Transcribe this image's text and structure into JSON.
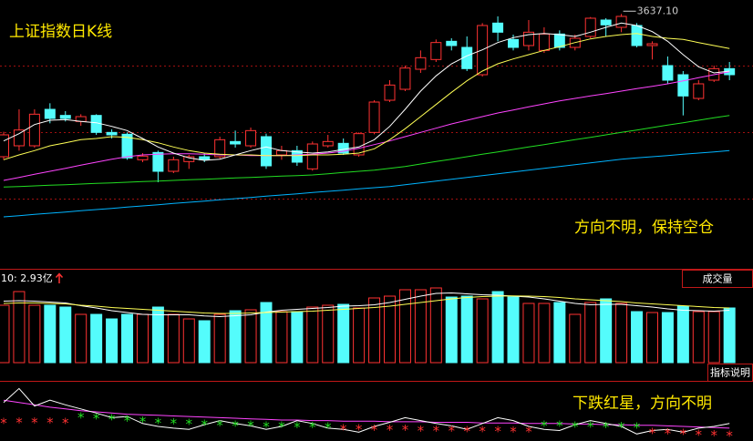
{
  "chart_data": [
    {
      "type": "candlestick",
      "title": "上证指数日K线",
      "annotation": "方向不明，保持空仓",
      "high_label": {
        "value": 3637.1,
        "label": "3637.10"
      },
      "ylim": [
        3217.5,
        3660
      ],
      "up_color": "#ff3232",
      "down_color": "#54fcfc",
      "open": [
        3402,
        3420,
        3420,
        3480,
        3470,
        3460,
        3470,
        3442,
        3439,
        3397,
        3409,
        3378,
        3394,
        3402,
        3402,
        3427,
        3420,
        3435,
        3405,
        3412,
        3382,
        3420,
        3424,
        3405,
        3442,
        3495,
        3513,
        3546,
        3562,
        3592,
        3582,
        3537,
        3622,
        3595,
        3585,
        3577,
        3604,
        3582,
        3600,
        3627,
        3615,
        3618,
        3585,
        3552,
        3537,
        3498,
        3528,
        3547
      ],
      "high": [
        3443,
        3480,
        3480,
        3490,
        3477,
        3472,
        3472,
        3447,
        3442,
        3408,
        3412,
        3402,
        3405,
        3408,
        3435,
        3445,
        3450,
        3440,
        3420,
        3420,
        3427,
        3438,
        3432,
        3442,
        3495,
        3528,
        3552,
        3577,
        3595,
        3597,
        3600,
        3622,
        3633,
        3603,
        3627,
        3615,
        3610,
        3603,
        3632,
        3630,
        3637.1,
        3622,
        3592,
        3567,
        3543,
        3528,
        3552,
        3558
      ],
      "low": [
        3397,
        3412,
        3417,
        3457,
        3460,
        3453,
        3438,
        3432,
        3397,
        3393,
        3360,
        3375,
        3382,
        3393,
        3399,
        3417,
        3417,
        3382,
        3397,
        3387,
        3379,
        3417,
        3405,
        3402,
        3439,
        3492,
        3510,
        3540,
        3558,
        3577,
        3543,
        3534,
        3592,
        3577,
        3577,
        3573,
        3577,
        3577,
        3597,
        3600,
        3607,
        3582,
        3562,
        3522,
        3470,
        3495,
        3525,
        3528
      ],
      "close": [
        3438,
        3446,
        3472,
        3465,
        3465,
        3468,
        3442,
        3438,
        3400,
        3403,
        3378,
        3397,
        3402,
        3397,
        3430,
        3423,
        3445,
        3387,
        3412,
        3393,
        3423,
        3427,
        3408,
        3440,
        3492,
        3520,
        3548,
        3565,
        3590,
        3585,
        3547,
        3618,
        3607,
        3582,
        3607,
        3604,
        3582,
        3597,
        3630,
        3619,
        3633,
        3585,
        3588,
        3528,
        3502,
        3522,
        3547,
        3537
      ],
      "ma_series": [
        {
          "color": "#00b4ff",
          "values": [
            3303,
            3305,
            3307,
            3309,
            3311,
            3313,
            3315,
            3317,
            3319,
            3321,
            3323,
            3325,
            3327,
            3329,
            3331,
            3333,
            3335,
            3337,
            3339,
            3341,
            3343,
            3345,
            3347,
            3349,
            3351,
            3353,
            3356,
            3359,
            3362,
            3365,
            3368,
            3371,
            3374,
            3377,
            3380,
            3383,
            3386,
            3389,
            3392,
            3395,
            3398,
            3400,
            3402,
            3404,
            3406,
            3408,
            3410,
            3412
          ]
        },
        {
          "color": "#22dd22",
          "values": [
            3352,
            3353,
            3354,
            3355,
            3356,
            3357,
            3358,
            3359,
            3360,
            3361,
            3362,
            3363,
            3364,
            3365,
            3366,
            3367,
            3368,
            3369,
            3370,
            3371,
            3372,
            3374,
            3376,
            3378,
            3380,
            3383,
            3386,
            3390,
            3394,
            3398,
            3402,
            3406,
            3410,
            3414,
            3418,
            3422,
            3426,
            3430,
            3434,
            3438,
            3442,
            3446,
            3450,
            3454,
            3458,
            3462,
            3466,
            3470
          ]
        },
        {
          "color": "#ff44ff",
          "values": [
            3363,
            3368,
            3373,
            3378,
            3383,
            3388,
            3393,
            3398,
            3402,
            3405,
            3406,
            3407,
            3407,
            3406,
            3405,
            3405,
            3404,
            3404,
            3404,
            3405,
            3406,
            3408,
            3411,
            3416,
            3422,
            3428,
            3435,
            3442,
            3449,
            3456,
            3462,
            3468,
            3474,
            3479,
            3484,
            3489,
            3494,
            3498,
            3502,
            3506,
            3510,
            3514,
            3518,
            3522,
            3527,
            3532,
            3537,
            3542
          ]
        },
        {
          "color": "#ffff55",
          "values": [
            3397,
            3405,
            3412,
            3420,
            3425,
            3430,
            3432,
            3435,
            3434,
            3430,
            3425,
            3418,
            3412,
            3408,
            3406,
            3405,
            3405,
            3404,
            3404,
            3404,
            3405,
            3405,
            3406,
            3408,
            3415,
            3430,
            3448,
            3468,
            3488,
            3508,
            3527,
            3543,
            3555,
            3563,
            3570,
            3577,
            3583,
            3590,
            3596,
            3600,
            3603,
            3605,
            3600,
            3597,
            3595,
            3590,
            3585,
            3580
          ]
        },
        {
          "color": "#ffffff",
          "values": [
            3428,
            3440,
            3455,
            3462,
            3463,
            3460,
            3458,
            3452,
            3445,
            3432,
            3418,
            3408,
            3400,
            3396,
            3398,
            3405,
            3412,
            3418,
            3412,
            3410,
            3408,
            3410,
            3414,
            3418,
            3430,
            3452,
            3480,
            3510,
            3535,
            3555,
            3568,
            3578,
            3590,
            3598,
            3603,
            3605,
            3603,
            3600,
            3607,
            3615,
            3622,
            3618,
            3608,
            3592,
            3570,
            3550,
            3540,
            3543
          ]
        }
      ]
    },
    {
      "type": "bar",
      "title": "成交量",
      "legend": "10: 2.93亿",
      "ylim": [
        0,
        4.08
      ],
      "values": [
        2.52,
        3.12,
        2.52,
        2.52,
        2.44,
        2.12,
        2.12,
        1.92,
        2.12,
        2.12,
        2.44,
        2.12,
        1.92,
        1.84,
        2.12,
        2.28,
        2.32,
        2.64,
        2.24,
        2.24,
        2.44,
        2.52,
        2.56,
        2.4,
        2.84,
        2.92,
        3.2,
        3.2,
        3.28,
        2.88,
        2.92,
        2.8,
        3.12,
        2.88,
        2.6,
        2.6,
        2.64,
        2.12,
        2.64,
        2.8,
        2.6,
        2.24,
        2.2,
        2.2,
        2.48,
        2.24,
        2.24,
        2.4
      ],
      "ma_series": [
        {
          "color": "#ffffff",
          "values": [
            2.7,
            2.72,
            2.7,
            2.66,
            2.62,
            2.5,
            2.4,
            2.28,
            2.2,
            2.12,
            2.1,
            2.1,
            2.1,
            2.05,
            2.02,
            2.06,
            2.1,
            2.22,
            2.3,
            2.34,
            2.38,
            2.42,
            2.48,
            2.5,
            2.54,
            2.64,
            2.78,
            2.92,
            3.04,
            3.06,
            3.02,
            2.98,
            2.96,
            2.92,
            2.88,
            2.8,
            2.7,
            2.6,
            2.54,
            2.56,
            2.56,
            2.5,
            2.44,
            2.36,
            2.3,
            2.28,
            2.26,
            2.3
          ]
        },
        {
          "color": "#ffff55",
          "values": [
            2.6,
            2.62,
            2.62,
            2.6,
            2.58,
            2.52,
            2.48,
            2.42,
            2.38,
            2.34,
            2.3,
            2.26,
            2.22,
            2.18,
            2.16,
            2.16,
            2.18,
            2.2,
            2.22,
            2.24,
            2.26,
            2.3,
            2.34,
            2.38,
            2.42,
            2.48,
            2.56,
            2.64,
            2.72,
            2.8,
            2.86,
            2.9,
            2.92,
            2.93,
            2.92,
            2.9,
            2.86,
            2.8,
            2.76,
            2.72,
            2.68,
            2.62,
            2.58,
            2.54,
            2.5,
            2.46,
            2.42,
            2.4
          ]
        }
      ]
    },
    {
      "type": "line",
      "title": "指标说明",
      "annotation": "下跌红星，方向不明",
      "ylim": [
        0,
        100
      ],
      "series": [
        {
          "color": "#ff44ff",
          "values": [
            70,
            66,
            62,
            58,
            55,
            52,
            50,
            48,
            46,
            45,
            44,
            43,
            42,
            41,
            40,
            39,
            38,
            37,
            36,
            36,
            35,
            35,
            34,
            34,
            34,
            33,
            33,
            33,
            32,
            32,
            32,
            31,
            31,
            31,
            30,
            30,
            30,
            29,
            29,
            28,
            28,
            27,
            27,
            26,
            25,
            24,
            23,
            22
          ]
        },
        {
          "color": "#ffffff",
          "values": [
            66,
            90,
            60,
            70,
            62,
            55,
            48,
            40,
            42,
            30,
            25,
            22,
            20,
            28,
            35,
            30,
            26,
            20,
            25,
            35,
            30,
            22,
            20,
            15,
            25,
            32,
            40,
            35,
            30,
            26,
            20,
            30,
            40,
            35,
            25,
            20,
            18,
            28,
            35,
            30,
            25,
            12,
            18,
            20,
            15,
            22,
            25,
            30
          ]
        }
      ],
      "stars": [
        {
          "color": "#ff3232",
          "values": [
            36,
            37,
            37,
            37,
            36,
            null,
            null,
            null,
            null,
            null,
            null,
            null,
            null,
            null,
            null,
            null,
            null,
            null,
            null,
            null,
            null,
            null,
            25,
            25,
            24,
            24,
            24,
            23,
            23,
            23,
            22,
            22,
            22,
            21,
            21,
            null,
            null,
            null,
            null,
            null,
            null,
            null,
            19,
            18,
            17,
            16,
            15,
            14
          ]
        },
        {
          "color": "#22dd22",
          "values": [
            null,
            null,
            null,
            null,
            null,
            45,
            44,
            42,
            40,
            38,
            36,
            35,
            34,
            33,
            32,
            31,
            31,
            30,
            30,
            29,
            29,
            28,
            null,
            null,
            null,
            null,
            null,
            null,
            null,
            null,
            null,
            null,
            null,
            null,
            null,
            31,
            31,
            30,
            30,
            29,
            29,
            28,
            null,
            null,
            null,
            null,
            null,
            null
          ]
        }
      ]
    }
  ]
}
